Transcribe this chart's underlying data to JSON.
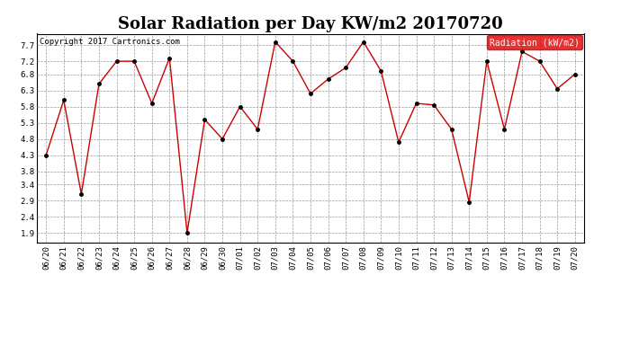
{
  "title": "Solar Radiation per Day KW/m2 20170720",
  "copyright_text": "Copyright 2017 Cartronics.com",
  "legend_label": "Radiation (kW/m2)",
  "dates": [
    "06/20",
    "06/21",
    "06/22",
    "06/23",
    "06/24",
    "06/25",
    "06/26",
    "06/27",
    "06/28",
    "06/29",
    "06/30",
    "07/01",
    "07/02",
    "07/03",
    "07/04",
    "07/05",
    "07/06",
    "07/07",
    "07/08",
    "07/09",
    "07/10",
    "07/11",
    "07/12",
    "07/13",
    "07/14",
    "07/15",
    "07/16",
    "07/17",
    "07/18",
    "07/19",
    "07/20"
  ],
  "values": [
    4.3,
    6.0,
    3.1,
    6.5,
    7.2,
    7.2,
    5.9,
    7.3,
    1.9,
    5.4,
    4.8,
    5.8,
    5.1,
    7.8,
    7.2,
    6.2,
    6.65,
    7.0,
    7.8,
    6.9,
    4.7,
    5.9,
    5.85,
    5.1,
    2.85,
    7.2,
    5.1,
    7.5,
    7.2,
    6.35,
    6.8
  ],
  "line_color": "#cc0000",
  "marker_color": "#000000",
  "bg_color": "#ffffff",
  "plot_bg_color": "#ffffff",
  "grid_color": "#999999",
  "legend_bg_color": "#dd0000",
  "legend_text_color": "#ffffff",
  "yticks": [
    1.9,
    2.4,
    2.9,
    3.4,
    3.8,
    4.3,
    4.8,
    5.3,
    5.8,
    6.3,
    6.8,
    7.2,
    7.7
  ],
  "ylim": [
    1.6,
    8.05
  ],
  "title_fontsize": 13,
  "copyright_fontsize": 6.5,
  "tick_fontsize": 6.5,
  "legend_fontsize": 7
}
